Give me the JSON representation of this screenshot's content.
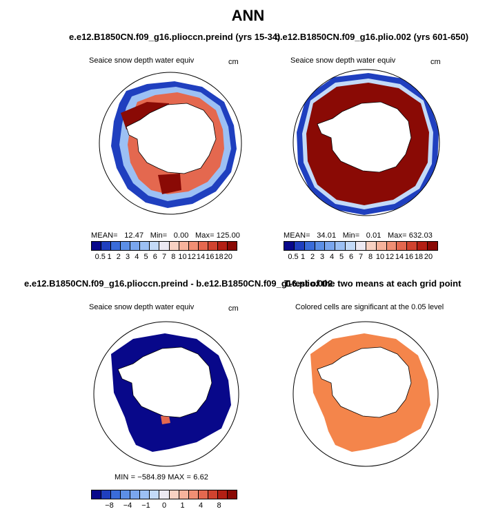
{
  "title": "ANN",
  "panels": [
    {
      "case_title": "e.e12.B1850CN.f09_g16.plioccn.preind (yrs 15-34)",
      "subtitle": "Seaice snow depth water equiv",
      "units": "cm",
      "stats": {
        "mean_label": "MEAN=",
        "mean": "12.47",
        "min_label": "Min=",
        "min": "0.00",
        "max_label": "Max=",
        "max": "125.00"
      },
      "colorbar_ticks": [
        "0.5",
        "1",
        "2",
        "3",
        "4",
        "5",
        "6",
        "7",
        "8",
        "10",
        "12",
        "14",
        "16",
        "18",
        "20"
      ]
    },
    {
      "case_title": "b.e12.B1850CN.f09_g16.plio.002 (yrs 601-650)",
      "subtitle": "Seaice snow depth water equiv",
      "units": "cm",
      "stats": {
        "mean_label": "MEAN=",
        "mean": "34.01",
        "min_label": "Min=",
        "min": "0.01",
        "max_label": "Max=",
        "max": "632.03"
      },
      "colorbar_ticks": [
        "0.5",
        "1",
        "2",
        "3",
        "4",
        "5",
        "6",
        "7",
        "8",
        "10",
        "12",
        "14",
        "16",
        "18",
        "20"
      ]
    },
    {
      "case_title": "e.e12.B1850CN.f09_g16.plioccn.preind - b.e12.B1850CN.f09_g16.plio.002",
      "subtitle": "Seaice snow depth water equiv",
      "units": "cm",
      "stats_text": "MIN = −584.89  MAX =    6.62",
      "colorbar_ticks": [
        "−8",
        "−4",
        "−1",
        "0",
        "1",
        "4",
        "8"
      ]
    },
    {
      "case_title": "T-test of the two means at each grid point",
      "subtitle": "Colored cells are significant at the 0.05 level"
    }
  ],
  "colors": {
    "seq": [
      "#08088a",
      "#1f3fbf",
      "#3a6cd9",
      "#5c8fe6",
      "#7aa6ee",
      "#9cc0f4",
      "#c3daf8",
      "#ece9f2",
      "#f8d1c2",
      "#f6b39c",
      "#f08f74",
      "#e4684f",
      "#d0432f",
      "#b31f14",
      "#8a0a05"
    ],
    "diff": [
      "#08088a",
      "#1f3fbf",
      "#3a6cd9",
      "#5c8fe6",
      "#7aa6ee",
      "#9cc0f4",
      "#c3daf8",
      "#ece9f2",
      "#f8d1c2",
      "#f6b39c",
      "#f08f74",
      "#e4684f",
      "#d0432f",
      "#b31f14",
      "#8a0a05"
    ],
    "ttest": "#f4854b",
    "land": "#ffffff",
    "outline": "#000000"
  }
}
